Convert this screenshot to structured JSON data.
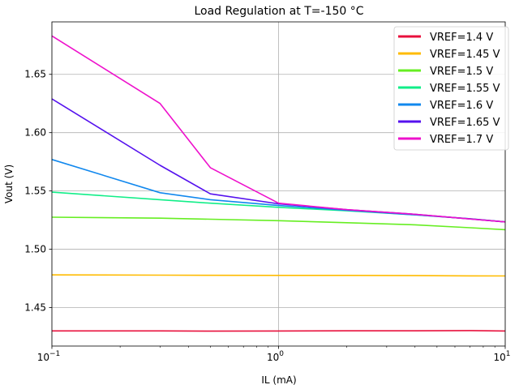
{
  "chart_data": {
    "type": "line",
    "title": "Load Regulation at T=-150 °C",
    "xlabel": "IL (mA)",
    "ylabel": "Vout (V)",
    "xscale": "log",
    "xlim": [
      0.1,
      10
    ],
    "ylim": [
      1.417,
      1.695
    ],
    "x_ticks": [
      {
        "value": 0.1,
        "base": "10",
        "exp": "−1"
      },
      {
        "value": 1,
        "base": "10",
        "exp": "0"
      },
      {
        "value": 10,
        "base": "10",
        "exp": "1"
      }
    ],
    "y_ticks": [
      {
        "value": 1.45,
        "label": "1.45"
      },
      {
        "value": 1.5,
        "label": "1.50"
      },
      {
        "value": 1.55,
        "label": "1.55"
      },
      {
        "value": 1.6,
        "label": "1.60"
      },
      {
        "value": 1.65,
        "label": "1.65"
      }
    ],
    "grid": true,
    "legend_position": "top-right",
    "series": [
      {
        "name": "VREF=1.4 V",
        "color": "#e8103c",
        "x": [
          0.1,
          0.3,
          0.5,
          1,
          2,
          4,
          7,
          10
        ],
        "y": [
          1.43,
          1.43,
          1.4298,
          1.4299,
          1.4301,
          1.4301,
          1.4303,
          1.4299
        ]
      },
      {
        "name": "VREF=1.45 V",
        "color": "#ffbb00",
        "x": [
          0.1,
          0.3,
          0.5,
          1,
          2,
          4,
          7,
          10
        ],
        "y": [
          1.478,
          1.4778,
          1.4777,
          1.4776,
          1.4776,
          1.4774,
          1.4772,
          1.4771
        ]
      },
      {
        "name": "VREF=1.5 V",
        "color": "#66ee22",
        "x": [
          0.1,
          0.3,
          0.5,
          1,
          2,
          4,
          7,
          10
        ],
        "y": [
          1.5275,
          1.5267,
          1.5258,
          1.5245,
          1.5228,
          1.521,
          1.5185,
          1.5168
        ]
      },
      {
        "name": "VREF=1.55 V",
        "color": "#11ee88",
        "x": [
          0.1,
          0.3,
          0.5,
          1,
          2,
          4,
          7,
          10
        ],
        "y": [
          1.549,
          1.5425,
          1.5395,
          1.536,
          1.533,
          1.5295,
          1.5262,
          1.5235
        ]
      },
      {
        "name": "VREF=1.6 V",
        "color": "#1188ee",
        "x": [
          0.1,
          0.3,
          0.5,
          1,
          2,
          4,
          7,
          10
        ],
        "y": [
          1.577,
          1.5485,
          1.5425,
          1.5375,
          1.5335,
          1.5295,
          1.5262,
          1.5235
        ]
      },
      {
        "name": "VREF=1.65 V",
        "color": "#5511ee",
        "x": [
          0.1,
          0.3,
          0.5,
          1,
          2,
          4,
          7,
          10
        ],
        "y": [
          1.629,
          1.572,
          1.5475,
          1.539,
          1.534,
          1.53,
          1.526,
          1.5235
        ]
      },
      {
        "name": "VREF=1.7 V",
        "color": "#ee11cc",
        "x": [
          0.1,
          0.3,
          0.5,
          1,
          2,
          4,
          7,
          10
        ],
        "y": [
          1.683,
          1.625,
          1.57,
          1.5395,
          1.534,
          1.53,
          1.526,
          1.5235
        ]
      }
    ]
  }
}
